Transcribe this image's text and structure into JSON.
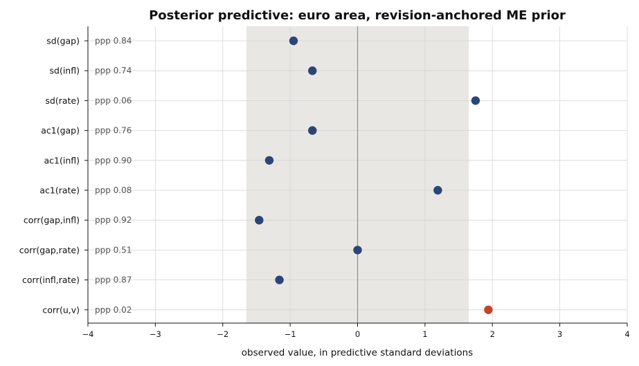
{
  "chart_data": {
    "type": "scatter",
    "title": "Posterior predictive: euro area, revision-anchored ME prior",
    "xlabel": "observed value, in predictive standard deviations",
    "ylabel": "",
    "xlim": [
      -4,
      4
    ],
    "xticks": [
      -4,
      -3,
      -2,
      -1,
      0,
      1,
      2,
      3,
      4
    ],
    "xtick_labels": [
      "−4",
      "−3",
      "−2",
      "−1",
      "0",
      "1",
      "2",
      "3",
      "4"
    ],
    "band": [
      -1.65,
      1.65
    ],
    "band_color": "#e8e7e3",
    "grid": true,
    "colors": {
      "normal": "#2b4576",
      "flagged": "#c0452b"
    },
    "categories": [
      "sd(gap)",
      "sd(infl)",
      "sd(rate)",
      "ac1(gap)",
      "ac1(infl)",
      "ac1(rate)",
      "corr(gap,infl)",
      "corr(gap,rate)",
      "corr(infl,rate)",
      "corr(u,v)"
    ],
    "values": [
      -0.95,
      -0.67,
      1.75,
      -0.67,
      -1.31,
      1.19,
      -1.46,
      0.0,
      -1.16,
      1.94
    ],
    "ppp_labels": [
      "ppp 0.84",
      "ppp 0.74",
      "ppp 0.06",
      "ppp 0.76",
      "ppp 0.90",
      "ppp 0.08",
      "ppp 0.92",
      "ppp 0.51",
      "ppp 0.87",
      "ppp 0.02"
    ],
    "highlight": [
      false,
      false,
      false,
      false,
      false,
      false,
      false,
      false,
      false,
      true
    ]
  }
}
